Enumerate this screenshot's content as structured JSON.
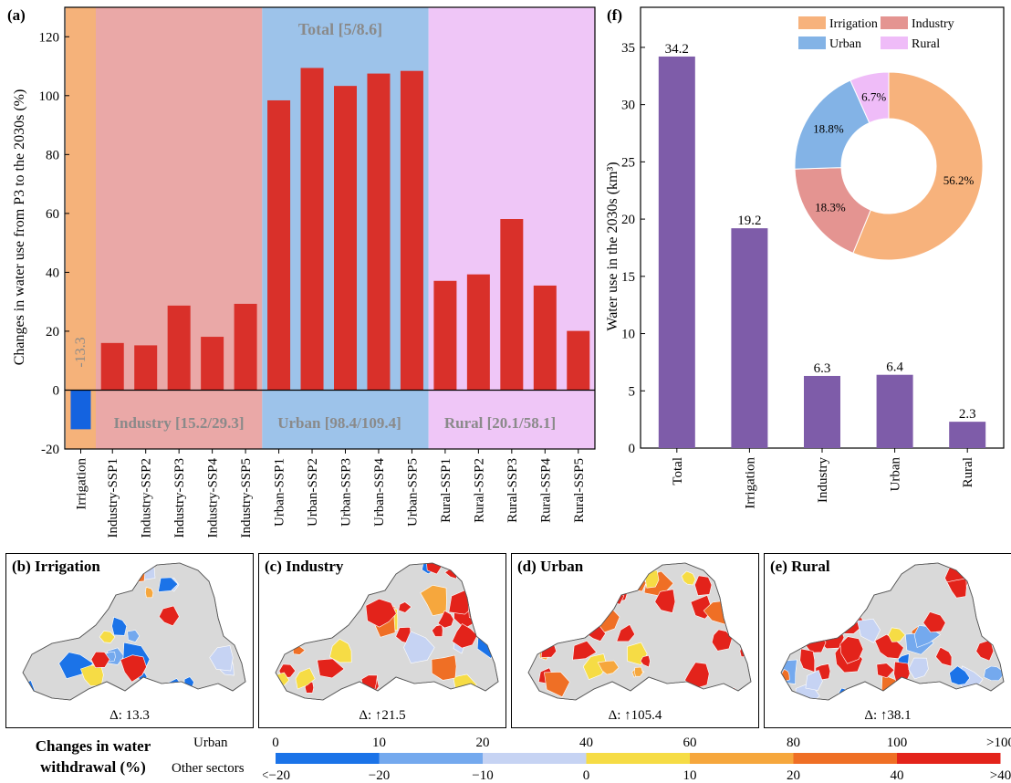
{
  "panel_a": {
    "label": "(a)",
    "ylabel": "Changes in water use from P3 to the 2030s (%)",
    "group_labels": {
      "industry": "Industry [15.2/29.3]",
      "urban": "Urban [98.4/109.4]",
      "rural": "Rural [20.1/58.1]",
      "total": "Total [5/8.6]"
    },
    "irrigation_value_label": "-13.3",
    "colors": {
      "bar": "#d9302a",
      "negative_bar": "#1463e0",
      "irrigation_bg": "#f5b27a",
      "industry_bg": "#eaa8a7",
      "urban_bg": "#9dc3ea",
      "rural_bg": "#efc6f7",
      "group_text": "#8a8a8a"
    }
  },
  "panel_f": {
    "label": "(f)",
    "ylabel": "Water use in the 2030s (km³)",
    "bar_color": "#7e5ca9",
    "donut": {
      "legend": [
        "Irrigation",
        "Industry",
        "Urban",
        "Rural"
      ],
      "slice_labels": [
        "56.2%",
        "18.3%",
        "18.8%",
        "6.7%"
      ],
      "colors": [
        "#f7b27c",
        "#e49491",
        "#83b3e6",
        "#efbcf8"
      ]
    }
  },
  "maps": [
    {
      "title": "(b) Irrigation",
      "delta": "Δ:  13.3"
    },
    {
      "title": "(c) Industry",
      "delta": "Δ: ↑21.5"
    },
    {
      "title": "(d) Urban",
      "delta": "Δ: ↑105.4"
    },
    {
      "title": "(e) Rural",
      "delta": "Δ: ↑38.1"
    }
  ],
  "colorbar": {
    "title_line1": "Changes in water",
    "title_line2": "withdrawal (%)",
    "row1_label": "Urban",
    "row2_label": "Other sectors",
    "top_ticks": [
      "0",
      "10",
      "20",
      "40",
      "60",
      "80",
      "100",
      ">100"
    ],
    "bottom_ticks": [
      "<−20",
      "−20",
      "−10",
      "0",
      "10",
      "20",
      "40",
      ">40"
    ],
    "colors": [
      "#1b73e8",
      "#74a9ee",
      "#c6d3f3",
      "#f6dc45",
      "#f6a73d",
      "#ef6f25",
      "#e3231b"
    ]
  },
  "chart_data": [
    {
      "type": "bar",
      "categories": [
        "Irrigation",
        "Industry-SSP1",
        "Industry-SSP2",
        "Industry-SSP3",
        "Industry-SSP4",
        "Industry-SSP5",
        "Urban-SSP1",
        "Urban-SSP2",
        "Urban-SSP3",
        "Urban-SSP4",
        "Urban-SSP5",
        "Rural-SSP1",
        "Rural-SSP2",
        "Rural-SSP3",
        "Rural-SSP4",
        "Rural-SSP5"
      ],
      "values": [
        -13.3,
        16,
        15.2,
        28.7,
        18.1,
        29.3,
        98.4,
        109.4,
        103.3,
        107.5,
        108.4,
        37.1,
        39.3,
        58.1,
        35.5,
        20.1
      ],
      "ylim": [
        -20,
        130
      ],
      "yticks": [
        "-20",
        "0",
        "20",
        "40",
        "60",
        "80",
        "100",
        "120"
      ],
      "ylabel": "Changes in water use from P3 to the 2030s (%)"
    },
    {
      "type": "bar",
      "categories": [
        "Total",
        "Irrigation",
        "Industry",
        "Urban",
        "Rural"
      ],
      "values": [
        34.2,
        19.2,
        6.3,
        6.4,
        2.3
      ],
      "data_labels": [
        "34.2",
        "19.2",
        "6.3",
        "6.4",
        "2.3"
      ],
      "ylim": [
        0,
        38.5
      ],
      "yticks": [
        "0",
        "5",
        "10",
        "15",
        "20",
        "25",
        "30",
        "35"
      ],
      "ylabel": "Water use in the 2030s (km³)"
    },
    {
      "type": "pie",
      "categories": [
        "Irrigation",
        "Industry",
        "Urban",
        "Rural"
      ],
      "values": [
        56.2,
        18.3,
        18.8,
        6.7
      ]
    }
  ]
}
